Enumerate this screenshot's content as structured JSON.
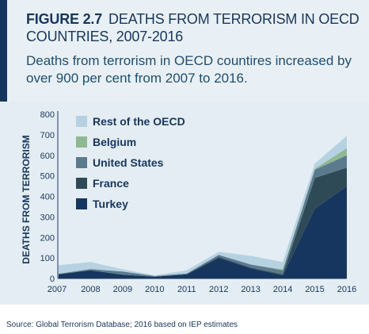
{
  "figure": {
    "label": "FIGURE 2.7",
    "title": "DEATHS FROM TERRORISM IN OECD COUNTRIES, 2007-2016",
    "subtitle": "Deaths from terrorism in OECD countires increased by over 900 per cent from 2007 to 2016."
  },
  "source": "Source: Global Terrorism Database; 2016 based on IEP estimates",
  "chart_data": {
    "type": "area",
    "stacked": true,
    "x": [
      "2007",
      "2008",
      "2009",
      "2010",
      "2011",
      "2012",
      "2013",
      "2014",
      "2015",
      "2016"
    ],
    "ylabel": "DEATHS FROM TERRORISM",
    "xlabel": "",
    "ylim": [
      0,
      800
    ],
    "yticks": [
      "0",
      "100",
      "200",
      "300",
      "400",
      "500",
      "600",
      "700",
      "800"
    ],
    "grid": false,
    "legend_position": "top-left",
    "series": [
      {
        "name": "Turkey",
        "color": "#17365f",
        "values": [
          20,
          40,
          18,
          8,
          20,
          100,
          50,
          15,
          340,
          450
        ]
      },
      {
        "name": "France",
        "color": "#2f4a57",
        "values": [
          1,
          1,
          1,
          1,
          1,
          5,
          3,
          5,
          150,
          90
        ]
      },
      {
        "name": "United States",
        "color": "#5c7a8e",
        "values": [
          2,
          5,
          15,
          3,
          3,
          10,
          15,
          20,
          40,
          60
        ]
      },
      {
        "name": "Belgium",
        "color": "#8fb993",
        "values": [
          0,
          0,
          0,
          0,
          0,
          0,
          0,
          5,
          5,
          35
        ]
      },
      {
        "name": "Rest of the OECD",
        "color": "#b6d2e2",
        "values": [
          42,
          34,
          11,
          3,
          16,
          15,
          42,
          35,
          25,
          60
        ]
      }
    ]
  }
}
